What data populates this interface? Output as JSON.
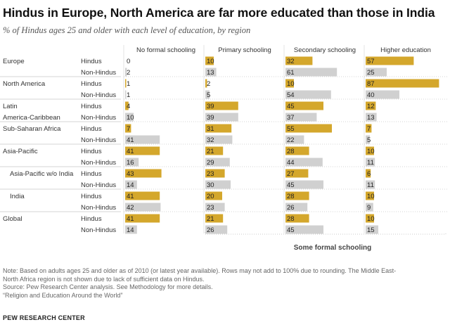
{
  "title": "Hindus in Europe, North America are far more educated than those in India",
  "subtitle": "% of Hindus ages 25 and older with each level of education, by region",
  "colors": {
    "hindus_bar": "#d4a72c",
    "non_hindus_bar": "#d0d0d0",
    "divider": "#aaaaaa",
    "bracket": "#bbbbbb"
  },
  "chart_data": {
    "type": "table",
    "columns": [
      "No formal schooling",
      "Primary schooling",
      "Secondary schooling",
      "Higher education"
    ],
    "group_label": "Some formal schooling",
    "rows": [
      {
        "region": "Europe",
        "group": "Hindus",
        "values": [
          0,
          10,
          32,
          57
        ]
      },
      {
        "region": "",
        "group": "Non-Hindus",
        "values": [
          2,
          13,
          61,
          25
        ]
      },
      {
        "region": "North America",
        "group": "Hindus",
        "values": [
          1,
          2,
          10,
          87
        ]
      },
      {
        "region": "",
        "group": "Non-Hindus",
        "values": [
          1,
          5,
          54,
          40
        ]
      },
      {
        "region": "Latin",
        "group": "Hindus",
        "values": [
          4,
          39,
          45,
          12
        ]
      },
      {
        "region": "America-Caribbean",
        "group": "Non-Hindus",
        "values": [
          10,
          39,
          37,
          13
        ]
      },
      {
        "region": "Sub-Saharan Africa",
        "group": "Hindus",
        "values": [
          7,
          31,
          55,
          7
        ]
      },
      {
        "region": "",
        "group": "Non-Hindus",
        "values": [
          41,
          32,
          22,
          5
        ]
      },
      {
        "region": "Asia-Pacific",
        "group": "Hindus",
        "values": [
          41,
          21,
          28,
          10
        ]
      },
      {
        "region": "",
        "group": "Non-Hindus",
        "values": [
          16,
          29,
          44,
          11
        ]
      },
      {
        "region": "Asia-Pacific w/o India",
        "group": "Hindus",
        "values": [
          43,
          23,
          27,
          6
        ]
      },
      {
        "region": "",
        "group": "Non-Hindus",
        "values": [
          14,
          30,
          45,
          11
        ]
      },
      {
        "region": "India",
        "group": "Hindus",
        "values": [
          41,
          20,
          28,
          10
        ]
      },
      {
        "region": "",
        "group": "Non-Hindus",
        "values": [
          42,
          23,
          26,
          9
        ]
      },
      {
        "region": "Global",
        "group": "Hindus",
        "values": [
          41,
          21,
          28,
          10
        ]
      },
      {
        "region": "",
        "group": "Non-Hindus",
        "values": [
          14,
          26,
          45,
          15
        ]
      }
    ]
  },
  "footer": {
    "note_line1": "Note: Based on adults ages 25 and older as of 2010 (or latest year available). Rows may not add to 100% due to rounding. The Middle East-",
    "note_line2": "North Africa region is not shown due to lack of sufficient data on Hindus.",
    "source": "Source: Pew Research Center analysis. See Methodology for more details.",
    "report": "“Religion and Education Around the World”",
    "brand": "PEW RESEARCH CENTER"
  }
}
